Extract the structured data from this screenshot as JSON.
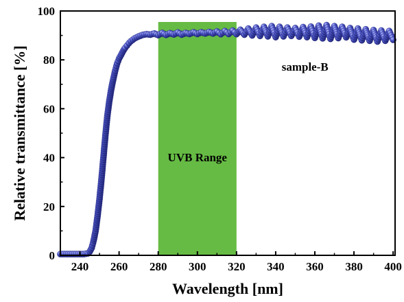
{
  "chart_data": {
    "type": "scatter",
    "title": "",
    "xlabel": "Wavelength [nm]",
    "ylabel": "Relative transmittance [%]",
    "xlim": [
      230,
      401
    ],
    "ylim": [
      0,
      100
    ],
    "xticks": [
      240,
      260,
      280,
      300,
      320,
      340,
      360,
      380,
      400
    ],
    "yticks": [
      0,
      20,
      40,
      60,
      80,
      100
    ],
    "grid": false,
    "legend": "none",
    "series": [
      {
        "name": "",
        "color": "#3e46b4",
        "marker": "circle",
        "x": [
          230,
          232,
          234,
          236,
          238,
          240,
          242,
          244,
          245,
          246,
          247,
          248,
          249,
          250,
          251,
          252,
          253,
          254,
          255,
          256,
          257,
          258,
          259,
          260,
          261,
          262,
          263,
          264,
          265,
          266,
          268,
          270,
          272,
          274,
          276,
          278,
          280,
          282,
          284,
          286,
          288,
          290,
          292,
          294,
          296,
          298,
          300,
          302,
          304,
          306,
          308,
          310,
          312,
          314,
          316,
          318,
          320,
          322,
          324,
          326,
          328,
          330,
          332,
          334,
          336,
          338,
          340,
          342,
          344,
          346,
          348,
          350,
          352,
          354,
          356,
          358,
          360,
          362,
          364,
          366,
          368,
          370,
          372,
          374,
          376,
          378,
          380,
          382,
          384,
          386,
          388,
          390,
          392,
          394,
          396,
          398,
          400
        ],
        "y": [
          0.5,
          0.5,
          0.5,
          0.5,
          0.5,
          0.5,
          0.5,
          0.8,
          1.5,
          3,
          6,
          10,
          16,
          23,
          31,
          40,
          49,
          57,
          63,
          68,
          72,
          75.5,
          78.5,
          80.5,
          82,
          83.5,
          84.8,
          85.8,
          86.8,
          87.6,
          88.8,
          89.6,
          90.2,
          90.5,
          90.3,
          90.8,
          90.1,
          91,
          90.2,
          90.9,
          90.4,
          91.2,
          90.3,
          91,
          90.6,
          91.3,
          90.6,
          91.3,
          90.8,
          91.4,
          90.8,
          91.6,
          90.5,
          91.8,
          90.6,
          92,
          90.5,
          92.3,
          90.3,
          92.8,
          90,
          93.2,
          89.8,
          93.5,
          89.6,
          93.8,
          89.3,
          93.5,
          89.6,
          93.2,
          89.8,
          93,
          89.5,
          93.4,
          89.3,
          93.6,
          89,
          94,
          88.8,
          94.2,
          88.6,
          93.8,
          88.9,
          93.5,
          89.2,
          93,
          88.3,
          92.8,
          88,
          92.5,
          87.8,
          92.2,
          87.5,
          92,
          87.8,
          91.8,
          88.2
        ]
      }
    ],
    "shaded_region": {
      "x": [
        280,
        320
      ],
      "color": "#66bb44",
      "label": "UVB Range"
    },
    "annotations": [
      {
        "text": "sample-B"
      }
    ]
  }
}
